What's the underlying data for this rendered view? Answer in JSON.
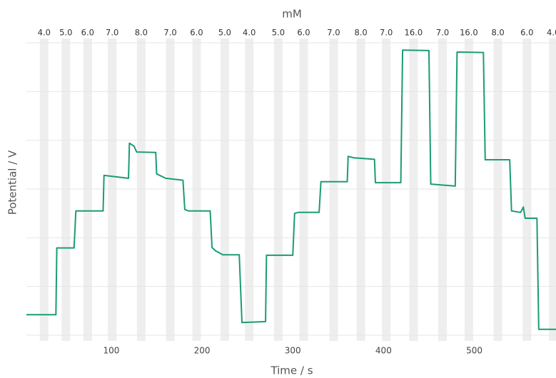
{
  "chart_data": {
    "type": "line",
    "x_label": "Time / s",
    "y_label": "Potential / V",
    "top_axis": {
      "label": "mM",
      "ticks": [
        {
          "value": 26,
          "label": "4.0"
        },
        {
          "value": 50,
          "label": "5.0"
        },
        {
          "value": 74,
          "label": "6.0"
        },
        {
          "value": 101,
          "label": "7.0"
        },
        {
          "value": 133,
          "label": "8.0"
        },
        {
          "value": 165,
          "label": "7.0"
        },
        {
          "value": 194,
          "label": "6.0"
        },
        {
          "value": 225,
          "label": "5.0"
        },
        {
          "value": 252,
          "label": "4.0"
        },
        {
          "value": 284,
          "label": "5.0"
        },
        {
          "value": 312,
          "label": "6.0"
        },
        {
          "value": 345,
          "label": "7.0"
        },
        {
          "value": 375,
          "label": "8.0"
        },
        {
          "value": 403,
          "label": "7.0"
        },
        {
          "value": 433,
          "label": "16.0"
        },
        {
          "value": 465,
          "label": "7.0"
        },
        {
          "value": 494,
          "label": "16.0"
        },
        {
          "value": 526,
          "label": "8.0"
        },
        {
          "value": 558,
          "label": "6.0"
        },
        {
          "value": 587,
          "label": "4.0"
        }
      ]
    },
    "x": [
      6.5,
      39,
      40,
      59,
      61,
      91,
      92,
      119,
      120,
      125,
      128,
      149,
      150,
      160,
      179,
      181,
      185,
      209,
      211,
      215,
      223,
      241,
      244,
      270,
      271,
      300,
      302,
      306,
      329,
      331,
      360,
      361,
      367,
      390,
      391,
      419,
      421,
      450,
      452,
      479,
      481,
      510,
      512,
      539,
      541,
      551,
      554,
      556,
      569,
      571,
      590
    ],
    "values": [
      0.42,
      0.42,
      1.79,
      1.79,
      2.55,
      2.55,
      3.28,
      3.22,
      3.94,
      3.88,
      3.76,
      3.75,
      3.31,
      3.22,
      3.18,
      2.58,
      2.55,
      2.55,
      1.8,
      1.73,
      1.65,
      1.65,
      0.26,
      0.28,
      1.64,
      1.64,
      2.5,
      2.52,
      2.52,
      3.15,
      3.15,
      3.67,
      3.64,
      3.61,
      3.13,
      3.13,
      5.85,
      5.84,
      3.1,
      3.06,
      5.81,
      5.8,
      3.6,
      3.6,
      2.55,
      2.52,
      2.63,
      2.4,
      2.4,
      0.12,
      0.12
    ],
    "color": "#1b9b77",
    "xlim": [
      6.5,
      590
    ],
    "xticks": [
      100,
      200,
      300,
      400,
      500
    ],
    "ylim": [
      0,
      6
    ],
    "yticks": [
      0,
      1,
      2,
      3,
      4,
      5,
      6
    ],
    "grid": true
  }
}
